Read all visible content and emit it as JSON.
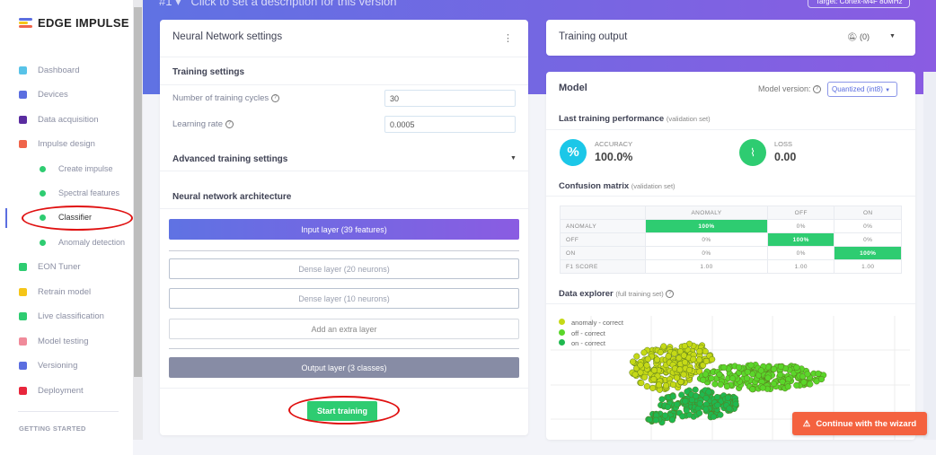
{
  "sidebar": {
    "logo": "EDGE IMPULSE",
    "items": [
      {
        "label": "Dashboard",
        "icon": "monitor-icon",
        "color": "#58c3e8"
      },
      {
        "label": "Devices",
        "icon": "chip-icon",
        "color": "#5b6ee0"
      },
      {
        "label": "Data acquisition",
        "icon": "database-icon",
        "color": "#5a2ca0"
      },
      {
        "label": "Impulse design",
        "icon": "pulse-icon",
        "color": "#f0644a"
      },
      {
        "label": "Create impulse",
        "sub": true
      },
      {
        "label": "Spectral features",
        "sub": true
      },
      {
        "label": "Classifier",
        "sub": true,
        "active": true
      },
      {
        "label": "Anomaly detection",
        "sub": true
      },
      {
        "label": "EON Tuner",
        "icon": "compass-icon",
        "color": "#2ecc71"
      },
      {
        "label": "Retrain model",
        "icon": "shuffle-icon",
        "color": "#f5c518"
      },
      {
        "label": "Live classification",
        "icon": "graph-icon",
        "color": "#2ecc71"
      },
      {
        "label": "Model testing",
        "icon": "clipboard-check-icon",
        "color": "#f08a9a"
      },
      {
        "label": "Versioning",
        "icon": "branch-icon",
        "color": "#5b6ee0"
      },
      {
        "label": "Deployment",
        "icon": "gift-icon",
        "color": "#e8263c"
      }
    ],
    "section": "GETTING STARTED"
  },
  "header": {
    "version": "#1 ▾",
    "description": "Click to set a description for this version",
    "target": "Target: Cortex-M4F 80MHz"
  },
  "nn": {
    "title": "Neural Network settings",
    "training_settings": "Training settings",
    "cycles_label": "Number of training cycles",
    "cycles_value": "30",
    "lr_label": "Learning rate",
    "lr_value": "0.0005",
    "advanced": "Advanced training settings",
    "architecture": "Neural network architecture",
    "input_layer": "Input layer (39 features)",
    "dense1": "Dense layer (20 neurons)",
    "dense2": "Dense layer (10 neurons)",
    "add_layer": "Add an extra layer",
    "output_layer": "Output layer (3 classes)",
    "start": "Start training"
  },
  "output": {
    "title": "Training output",
    "notif": "(0)"
  },
  "model": {
    "title": "Model",
    "version_label": "Model version:",
    "version_value": "Quantized (int8)",
    "perf_title": "Last training performance",
    "perf_sub": "(validation set)",
    "accuracy_label": "ACCURACY",
    "accuracy_value": "100.0%",
    "loss_label": "LOSS",
    "loss_value": "0.00",
    "cm_title": "Confusion matrix",
    "cm_sub": "(validation set)",
    "cm_cols": [
      "ANOMALY",
      "OFF",
      "ON"
    ],
    "cm_rows": [
      {
        "label": "ANOMALY",
        "cells": [
          "100%",
          "0%",
          "0%"
        ]
      },
      {
        "label": "OFF",
        "cells": [
          "0%",
          "100%",
          "0%"
        ]
      },
      {
        "label": "ON",
        "cells": [
          "0%",
          "0%",
          "100%"
        ]
      },
      {
        "label": "F1 SCORE",
        "cells": [
          "1.00",
          "1.00",
          "1.00"
        ]
      }
    ],
    "explorer_title": "Data explorer",
    "explorer_sub": "(full training set)",
    "legend": [
      {
        "label": "anomaly - correct",
        "color": "#c5d916"
      },
      {
        "label": "off - correct",
        "color": "#5ad62a"
      },
      {
        "label": "on - correct",
        "color": "#1fb84f"
      }
    ]
  },
  "wizard": "Continue with the wizard"
}
